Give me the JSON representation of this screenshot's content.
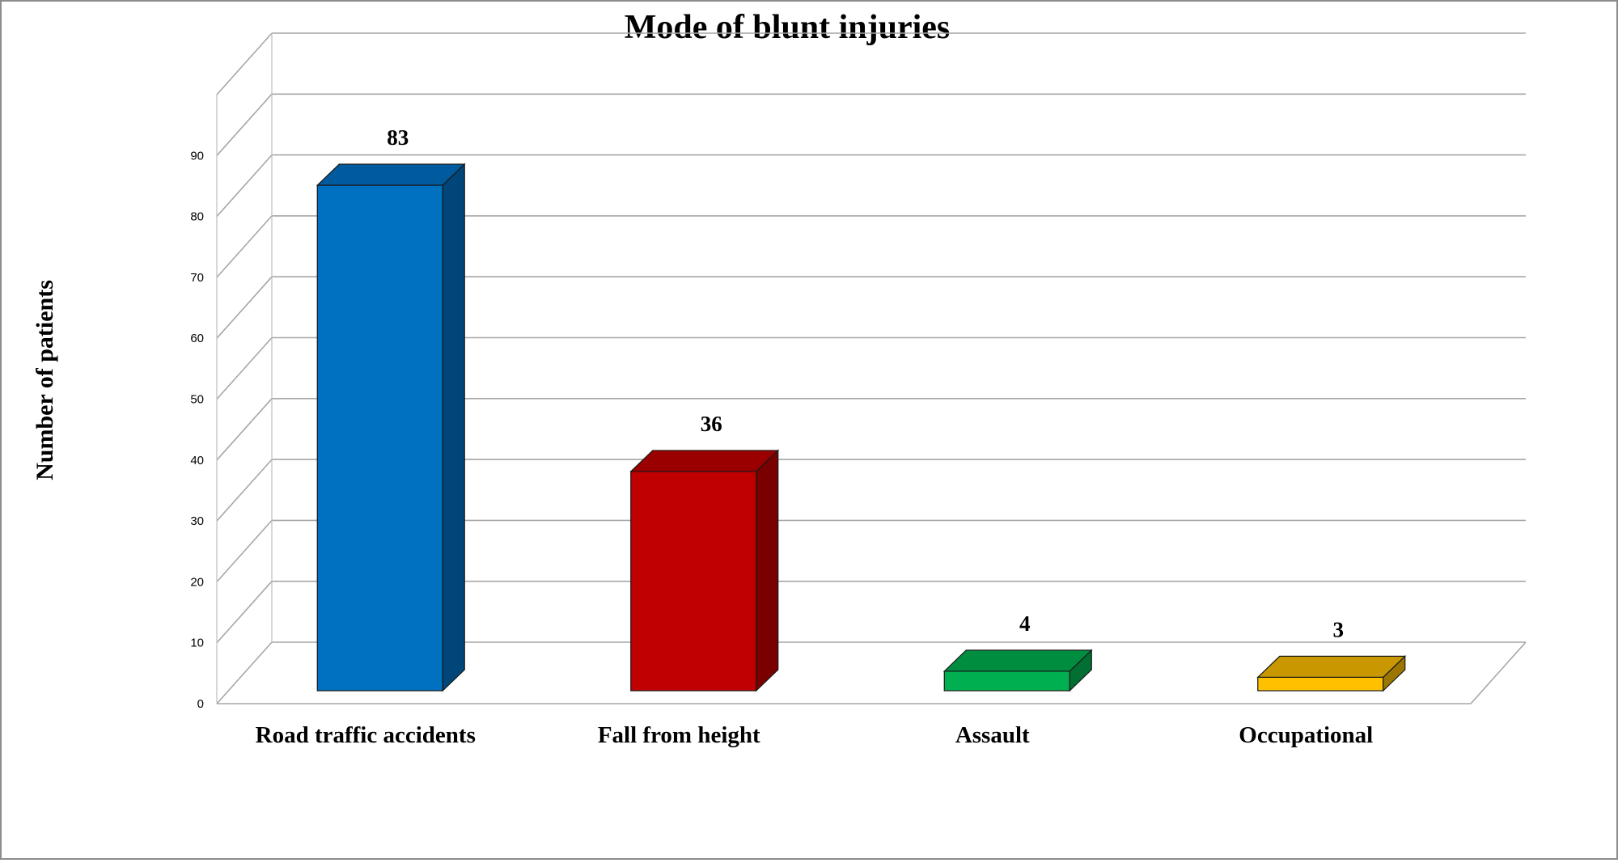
{
  "chart_data": {
    "type": "bar",
    "title": "Mode of blunt injuries",
    "xlabel": "",
    "ylabel": "Number of patients",
    "categories": [
      "Road traffic accidents",
      "Fall from height",
      "Assault",
      "Occupational"
    ],
    "values": [
      83,
      36,
      4,
      3
    ],
    "data_labels": [
      "83",
      "36",
      "4",
      "3"
    ],
    "y_ticks": [
      "0",
      "10",
      "20",
      "30",
      "40",
      "50",
      "60",
      "70",
      "80",
      "90"
    ],
    "ylim": [
      0,
      100
    ],
    "grid": true,
    "legend": "none",
    "style": "3d-column",
    "colors": {
      "front": [
        "#0070c0",
        "#c00000",
        "#00b050",
        "#ffc000"
      ],
      "top": [
        "#005a9e",
        "#9a0000",
        "#008d40",
        "#c99700"
      ],
      "side": [
        "#004679",
        "#7a0000",
        "#006f31",
        "#9c7600"
      ]
    }
  }
}
